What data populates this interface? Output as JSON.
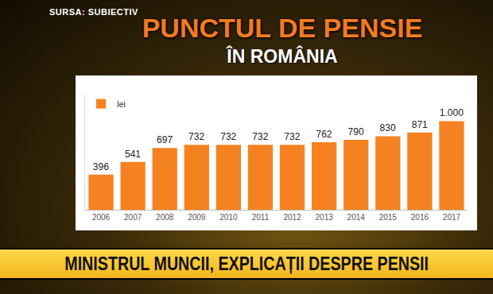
{
  "source": "SURSA: SUBIECTIV",
  "banner": "MINISTRUL MUNCII, EXPLICAȚII DESPRE PENSII",
  "chart_data": {
    "type": "bar",
    "title": "PUNCTUL DE PENSIE",
    "subtitle": "ÎN ROMÂNIA",
    "categories": [
      "2006",
      "2007",
      "2008",
      "2009",
      "2010",
      "2011",
      "2012",
      "2013",
      "2014",
      "2015",
      "2016",
      "2017"
    ],
    "series": [
      {
        "name": "lei",
        "color": "#f58220",
        "values": [
          396,
          541,
          697,
          732,
          732,
          732,
          732,
          762,
          790,
          830,
          871,
          1000
        ],
        "value_labels": [
          "396",
          "541",
          "697",
          "732",
          "732",
          "732",
          "732",
          "762",
          "790",
          "830",
          "871",
          "1.000"
        ]
      }
    ],
    "ylim": [
      0,
      1300
    ],
    "grid": false,
    "legend": "top left",
    "data_labels": true,
    "tick_labels": "x"
  }
}
